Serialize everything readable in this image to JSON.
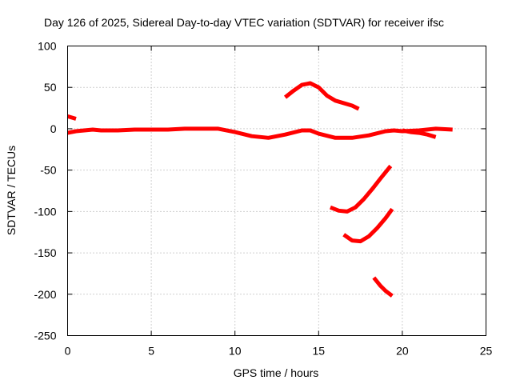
{
  "chart_data": {
    "type": "line",
    "title": "Day 126 of 2025, Sidereal Day-to-day VTEC variation (SDTVAR) for receiver ifsc",
    "xlabel": "GPS time / hours",
    "ylabel": "SDTVAR / TECUs",
    "xlim": [
      0,
      25
    ],
    "ylim": [
      -250,
      100
    ],
    "xticks": [
      0,
      5,
      10,
      15,
      20,
      25
    ],
    "yticks": [
      -250,
      -200,
      -150,
      -100,
      -50,
      0,
      50,
      100
    ],
    "grid": true,
    "color": "#ff0000",
    "series": [
      {
        "values": [
          [
            0.0,
            15
          ],
          [
            0.5,
            12
          ]
        ]
      },
      {
        "values": [
          [
            0.0,
            -5
          ],
          [
            0.5,
            -3
          ],
          [
            1.0,
            -2
          ],
          [
            1.5,
            -1
          ],
          [
            2.0,
            -2
          ],
          [
            3.0,
            -2
          ],
          [
            4.0,
            -1
          ],
          [
            5.0,
            -1
          ],
          [
            6.0,
            -1
          ],
          [
            7.0,
            0
          ],
          [
            8.0,
            0
          ],
          [
            9.0,
            0
          ],
          [
            10.0,
            -4
          ],
          [
            11.0,
            -9
          ],
          [
            12.0,
            -11
          ],
          [
            13.0,
            -7
          ],
          [
            14.0,
            -2
          ],
          [
            14.5,
            -2
          ],
          [
            15.0,
            -6
          ],
          [
            16.0,
            -11
          ],
          [
            17.0,
            -11
          ],
          [
            18.0,
            -8
          ],
          [
            19.0,
            -3
          ],
          [
            19.5,
            -2
          ],
          [
            20.0,
            -3
          ],
          [
            21.0,
            -2
          ],
          [
            22.0,
            0
          ],
          [
            23.0,
            -1
          ]
        ]
      },
      {
        "values": [
          [
            20.0,
            -2
          ],
          [
            20.5,
            -4
          ],
          [
            21.0,
            -5
          ],
          [
            21.5,
            -7
          ],
          [
            22.0,
            -10
          ]
        ]
      },
      {
        "values": [
          [
            13.0,
            38
          ],
          [
            13.5,
            46
          ],
          [
            14.0,
            53
          ],
          [
            14.5,
            55
          ],
          [
            15.0,
            50
          ],
          [
            15.5,
            40
          ],
          [
            16.0,
            34
          ],
          [
            17.0,
            28
          ],
          [
            17.4,
            24
          ]
        ]
      },
      {
        "values": [
          [
            15.7,
            -95
          ],
          [
            16.2,
            -99
          ],
          [
            16.7,
            -100
          ],
          [
            17.2,
            -95
          ],
          [
            17.7,
            -85
          ],
          [
            18.2,
            -73
          ],
          [
            18.7,
            -60
          ],
          [
            19.3,
            -45
          ]
        ]
      },
      {
        "values": [
          [
            16.5,
            -128
          ],
          [
            17.0,
            -135
          ],
          [
            17.5,
            -136
          ],
          [
            18.0,
            -130
          ],
          [
            18.5,
            -120
          ],
          [
            19.0,
            -108
          ],
          [
            19.4,
            -97
          ]
        ]
      },
      {
        "values": [
          [
            18.3,
            -180
          ],
          [
            18.7,
            -190
          ],
          [
            19.0,
            -196
          ],
          [
            19.4,
            -202
          ]
        ]
      }
    ]
  }
}
